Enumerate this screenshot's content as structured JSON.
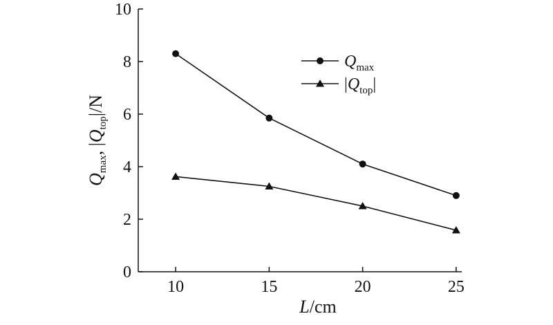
{
  "chart_data": {
    "type": "line",
    "x": [
      10,
      15,
      20,
      25
    ],
    "series": [
      {
        "name": "Q_max",
        "marker": "circle",
        "values": [
          8.3,
          5.85,
          4.1,
          2.9
        ]
      },
      {
        "name": "|Q_top|",
        "marker": "triangle",
        "values": [
          3.62,
          3.25,
          2.5,
          1.58
        ]
      }
    ],
    "xlim": [
      8,
      25.3
    ],
    "ylim": [
      0,
      10
    ],
    "xticks": [
      10,
      15,
      20,
      25
    ],
    "yticks": [
      0,
      2,
      4,
      6,
      8,
      10
    ],
    "xlabel": {
      "var": "L",
      "unit": "/cm"
    },
    "ylabel": {
      "q1": "Q",
      "sub1": "max",
      "sep": ", |",
      "q2": "Q",
      "sub2": "top",
      "unit": "|/N"
    },
    "legend": {
      "position": "top-right",
      "entries": [
        {
          "main": "Q",
          "sub": "max",
          "prefix": "",
          "suffix": ""
        },
        {
          "main": "Q",
          "sub": "top",
          "prefix": "|",
          "suffix": "|"
        }
      ]
    },
    "grid": false,
    "colors": {
      "line": "#111111",
      "marker": "#111111"
    }
  }
}
